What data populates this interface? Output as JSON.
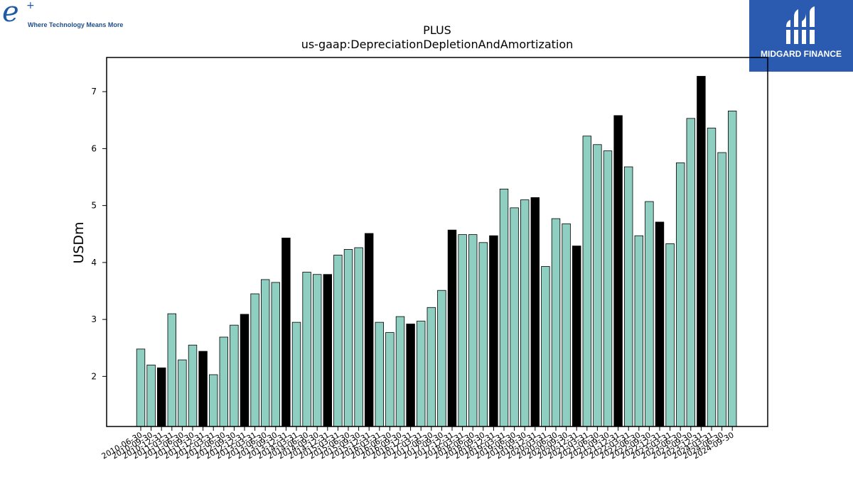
{
  "branding": {
    "left_logo_letter": "e",
    "left_logo_plus": "+",
    "left_logo_tagline": "Where Technology Means More",
    "right_logo_text": "MIDGARD FINANCE",
    "right_logo_color": "#2a5bb0"
  },
  "chart_data": {
    "type": "bar",
    "title": "PLUS",
    "subtitle": "us-gaap:DepreciationDepletionAndAmortization",
    "xlabel": "",
    "ylabel": "USDm",
    "ylim": [
      1.12,
      7.6
    ],
    "yticks": [
      2,
      3,
      4,
      5,
      6,
      7
    ],
    "grid": false,
    "colors": {
      "default": "#8ecfc2",
      "highlight": "#000000"
    },
    "categories": [
      "2010-06-30",
      "2010-09-30",
      "2010-12-31",
      "2011-03-31",
      "2011-06-30",
      "2011-09-30",
      "2011-12-31",
      "2012-03-31",
      "2012-06-30",
      "2012-09-30",
      "2012-12-31",
      "2013-03-31",
      "2013-06-30",
      "2013-09-30",
      "2013-12-31",
      "2014-03-31",
      "2014-06-30",
      "2014-09-30",
      "2014-12-31",
      "2015-03-31",
      "2015-06-30",
      "2015-09-30",
      "2015-12-31",
      "2016-03-31",
      "2016-06-30",
      "2016-09-30",
      "2016-12-31",
      "2017-03-31",
      "2017-06-30",
      "2017-09-30",
      "2017-12-31",
      "2018-03-31",
      "2018-06-30",
      "2018-09-30",
      "2018-12-31",
      "2019-03-31",
      "2019-06-30",
      "2019-09-30",
      "2019-12-31",
      "2020-03-31",
      "2020-06-30",
      "2020-09-30",
      "2020-12-31",
      "2021-03-31",
      "2021-06-30",
      "2021-09-30",
      "2021-12-31",
      "2022-03-31",
      "2022-06-30",
      "2022-09-30",
      "2022-12-31",
      "2023-03-31",
      "2023-06-30",
      "2023-09-30",
      "2023-12-31",
      "2024-03-31",
      "2024-06-30",
      "2024-09-30"
    ],
    "tick_labels": [
      "2010-06-30",
      "2010-09-30",
      "2010-12-31",
      "2011-03-31",
      "2011-06-30",
      "2011-09-30",
      "2011-12-31",
      "2012-03-31",
      "2012-06-30",
      "2012-09-30",
      "2012-12-31",
      "2013-03-31",
      "2013-06-30",
      "2013-09-30",
      "2013-12-31",
      "2014-03-31",
      "2014-06-30",
      "2014-09-30",
      "2014-12-31",
      "2015-03-31",
      "2015-06-30",
      "2015-09-30",
      "2015-12-31",
      "2016-03-31",
      "2016-06-30",
      "2016-09-30",
      "2016-12-31",
      "2017-03-31",
      "2017-06-30",
      "2017-09-30",
      "2017-12-31",
      "2018-03-31",
      "2018-06-30",
      "2018-09-30",
      "2018-12-31",
      "2019-03-31",
      "2019-06-30",
      "2019-09-30",
      "2019-12-31",
      "2020-03-31",
      "2020-06-30",
      "2020-09-30",
      "2020-12-31",
      "2021-03-31",
      "2021-06-30",
      "2021-09-30",
      "2021-12-31",
      "2022-03-31",
      "2022-06-30",
      "2022-09-30",
      "2022-12-31",
      "2023-03-31",
      "2023-06-30",
      "2023-09-30",
      "2023-12-31",
      "2024-03-31",
      "2024-06-30",
      "2024-09-30"
    ],
    "values": [
      2.48,
      2.2,
      2.15,
      3.1,
      2.29,
      2.55,
      2.44,
      2.03,
      2.69,
      2.9,
      3.09,
      3.45,
      3.7,
      3.65,
      4.43,
      2.95,
      3.83,
      3.79,
      3.79,
      4.13,
      4.23,
      4.26,
      4.51,
      2.95,
      2.77,
      3.05,
      2.92,
      2.97,
      3.21,
      3.51,
      4.57,
      4.49,
      4.49,
      4.35,
      4.47,
      5.29,
      4.96,
      5.1,
      5.14,
      3.93,
      4.77,
      4.68,
      4.29,
      6.22,
      6.07,
      5.96,
      6.58,
      5.68,
      4.47,
      5.07,
      4.71,
      4.33,
      5.75,
      6.53,
      7.27,
      6.36,
      5.93,
      6.66
    ],
    "highlight": [
      false,
      false,
      true,
      false,
      false,
      false,
      true,
      false,
      false,
      false,
      true,
      false,
      false,
      false,
      true,
      false,
      false,
      false,
      true,
      false,
      false,
      false,
      true,
      false,
      false,
      false,
      true,
      false,
      false,
      false,
      true,
      false,
      false,
      false,
      true,
      false,
      false,
      false,
      true,
      false,
      false,
      false,
      true,
      false,
      false,
      false,
      true,
      false,
      false,
      false,
      true,
      false,
      false,
      false,
      true,
      false,
      false,
      false
    ]
  }
}
